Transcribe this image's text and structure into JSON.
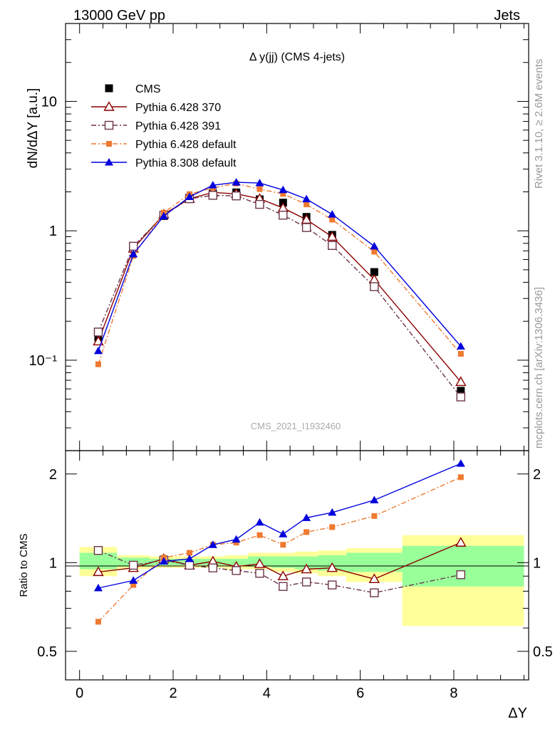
{
  "header": {
    "left": "13000 GeV pp",
    "right": "Jets"
  },
  "side_text": {
    "top": "Rivet 3.1.10, ≥ 2.6M events",
    "bottom": "mcplots.cern.ch [arXiv:1306.3436]"
  },
  "chart_data": [
    {
      "type": "line",
      "panel": "main",
      "title": "Δ y(jj) (CMS 4-jets)",
      "watermark": "CMS_2021_I1932460",
      "ylabel": "dN/dΔY [a.u.]",
      "yscale": "log",
      "ylim": [
        0.02,
        40
      ],
      "xlim": [
        -0.3,
        9.6
      ],
      "yticklabels": [
        "10⁻¹",
        "1",
        "10"
      ],
      "legend_position": "top-left",
      "x": [
        0.4,
        1.15,
        1.8,
        2.35,
        2.85,
        3.35,
        3.85,
        4.35,
        4.85,
        5.4,
        6.3,
        8.15
      ],
      "series": [
        {
          "name": "CMS",
          "color": "#000000",
          "marker": "square-filled",
          "line": "none",
          "values": [
            0.15,
            0.76,
            1.3,
            1.8,
            1.95,
            1.98,
            1.75,
            1.65,
            1.28,
            0.93,
            0.48,
            0.058
          ]
        },
        {
          "name": "Pythia 6.428 370",
          "color": "#8b0000",
          "marker": "triangle-open",
          "line": "solid",
          "values": [
            0.14,
            0.73,
            1.34,
            1.77,
            1.98,
            1.93,
            1.77,
            1.5,
            1.22,
            0.9,
            0.42,
            0.068
          ]
        },
        {
          "name": "Pythia 6.428 391",
          "color": "#6a3548",
          "marker": "square-open",
          "line": "dashdot",
          "values": [
            0.165,
            0.76,
            1.32,
            1.77,
            1.88,
            1.86,
            1.6,
            1.32,
            1.06,
            0.77,
            0.37,
            0.052
          ]
        },
        {
          "name": "Pythia 6.428 default",
          "color": "#ee7a30",
          "marker": "square-filled-small",
          "line": "dashdot",
          "values": [
            0.093,
            0.64,
            1.38,
            1.92,
            2.15,
            2.32,
            2.1,
            1.93,
            1.6,
            1.22,
            0.69,
            0.112
          ]
        },
        {
          "name": "Pythia 8.308 default",
          "color": "#0000dd",
          "marker": "triangle-filled",
          "line": "solid",
          "values": [
            0.118,
            0.66,
            1.3,
            1.83,
            2.25,
            2.37,
            2.34,
            2.07,
            1.76,
            1.34,
            0.76,
            0.128
          ]
        }
      ]
    },
    {
      "type": "line",
      "panel": "ratio",
      "xlabel": "ΔY",
      "ylabel": "Ratio to CMS",
      "ylim": [
        0.4,
        2.4
      ],
      "xlim": [
        -0.3,
        9.6
      ],
      "xticklabels": [
        "0",
        "2",
        "4",
        "6",
        "8"
      ],
      "yticklabels": [
        "0.5",
        "1",
        "2"
      ],
      "uncertainty_bands": {
        "bin_edges": [
          0,
          0.8,
          1.5,
          2.1,
          2.6,
          3.1,
          3.6,
          4.1,
          4.6,
          5.1,
          5.7,
          6.9,
          9.5
        ],
        "inner": [
          [
            0.95,
            1.08
          ],
          [
            0.97,
            1.04
          ],
          [
            0.98,
            1.03
          ],
          [
            0.98,
            1.03
          ],
          [
            0.98,
            1.03
          ],
          [
            0.98,
            1.03
          ],
          [
            0.97,
            1.05
          ],
          [
            0.96,
            1.05
          ],
          [
            0.95,
            1.05
          ],
          [
            0.94,
            1.06
          ],
          [
            0.93,
            1.08
          ],
          [
            0.83,
            1.14
          ]
        ],
        "outer": [
          [
            0.9,
            1.13
          ],
          [
            0.95,
            1.06
          ],
          [
            0.96,
            1.05
          ],
          [
            0.96,
            1.05
          ],
          [
            0.96,
            1.05
          ],
          [
            0.95,
            1.06
          ],
          [
            0.95,
            1.08
          ],
          [
            0.93,
            1.08
          ],
          [
            0.92,
            1.09
          ],
          [
            0.9,
            1.1
          ],
          [
            0.86,
            1.12
          ],
          [
            0.61,
            1.24
          ]
        ]
      },
      "x": [
        0.4,
        1.15,
        1.8,
        2.35,
        2.85,
        3.35,
        3.85,
        4.35,
        4.85,
        5.4,
        6.3,
        8.15
      ],
      "series": [
        {
          "name": "Pythia 6.428 370",
          "color": "#8b0000",
          "marker": "triangle-open",
          "line": "solid",
          "values": [
            0.93,
            0.96,
            1.03,
            0.98,
            1.01,
            0.97,
            0.99,
            0.9,
            0.95,
            0.96,
            0.88,
            1.17
          ]
        },
        {
          "name": "Pythia 6.428 391",
          "color": "#6a3548",
          "marker": "square-open",
          "line": "dashdot",
          "values": [
            1.1,
            0.98,
            1.02,
            0.98,
            0.96,
            0.94,
            0.92,
            0.83,
            0.86,
            0.84,
            0.79,
            0.91
          ]
        },
        {
          "name": "Pythia 6.428 default",
          "color": "#ee7a30",
          "marker": "square-filled-small",
          "line": "dashdot",
          "values": [
            0.63,
            0.84,
            1.04,
            1.08,
            1.15,
            1.17,
            1.24,
            1.15,
            1.27,
            1.32,
            1.44,
            1.95
          ]
        },
        {
          "name": "Pythia 8.308 default",
          "color": "#0000dd",
          "marker": "triangle-filled",
          "line": "solid",
          "values": [
            0.82,
            0.87,
            1.01,
            1.03,
            1.15,
            1.2,
            1.37,
            1.25,
            1.42,
            1.48,
            1.63,
            2.17
          ]
        }
      ]
    }
  ]
}
